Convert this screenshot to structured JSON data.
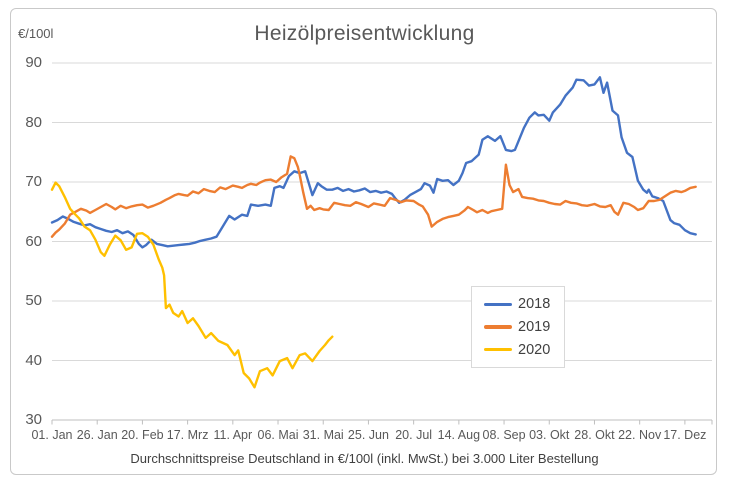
{
  "chart": {
    "title": "Heizölpreisentwicklung",
    "unit_label": "€/100l",
    "caption": "Durchschnittspreise Deutschland in €/100l (inkl. MwSt.) bei 3.000 Liter Bestellung"
  },
  "chart_data": {
    "type": "line",
    "title": "Heizölpreisentwicklung",
    "ylabel": "€/100l",
    "ylim": [
      30,
      90
    ],
    "yticks": [
      90,
      80,
      70,
      60,
      50,
      40,
      30
    ],
    "xlim_days": [
      0,
      365
    ],
    "xtick_days": [
      0,
      25,
      50,
      75,
      100,
      125,
      150,
      175,
      200,
      225,
      250,
      275,
      300,
      325,
      350
    ],
    "xtick_labels": [
      "01. Jan",
      "26. Jan",
      "20. Feb",
      "17. Mrz",
      "11. Apr",
      "06. Mai",
      "31. Mai",
      "25. Jun",
      "20. Jul",
      "14. Aug",
      "08. Sep",
      "03. Okt",
      "28. Okt",
      "22. Nov",
      "17. Dez"
    ],
    "grid": "horizontal",
    "legend_position": "inside-right",
    "axis_color": "#bfbfbf",
    "grid_color": "#d9d9d9",
    "series": [
      {
        "name": "2018",
        "color": "#4472C4",
        "points": [
          [
            0,
            63.2
          ],
          [
            3,
            63.6
          ],
          [
            6,
            64.2
          ],
          [
            9,
            63.8
          ],
          [
            12,
            63.3
          ],
          [
            15,
            63.0
          ],
          [
            18,
            62.7
          ],
          [
            21,
            62.9
          ],
          [
            24,
            62.4
          ],
          [
            27,
            62.1
          ],
          [
            30,
            61.8
          ],
          [
            33,
            61.6
          ],
          [
            36,
            61.9
          ],
          [
            39,
            61.4
          ],
          [
            42,
            61.7
          ],
          [
            45,
            61.1
          ],
          [
            48,
            59.6
          ],
          [
            50,
            59.0
          ],
          [
            52,
            59.4
          ],
          [
            55,
            60.3
          ],
          [
            58,
            59.6
          ],
          [
            61,
            59.4
          ],
          [
            64,
            59.2
          ],
          [
            67,
            59.3
          ],
          [
            70,
            59.4
          ],
          [
            73,
            59.5
          ],
          [
            76,
            59.6
          ],
          [
            79,
            59.8
          ],
          [
            82,
            60.1
          ],
          [
            85,
            60.3
          ],
          [
            88,
            60.5
          ],
          [
            91,
            60.8
          ],
          [
            94,
            62.3
          ],
          [
            98,
            64.3
          ],
          [
            101,
            63.7
          ],
          [
            105,
            64.5
          ],
          [
            108,
            64.3
          ],
          [
            110,
            66.2
          ],
          [
            114,
            66.0
          ],
          [
            118,
            66.2
          ],
          [
            121,
            66.0
          ],
          [
            123,
            69.0
          ],
          [
            126,
            69.3
          ],
          [
            128,
            69.0
          ],
          [
            131,
            71.0
          ],
          [
            134,
            71.8
          ],
          [
            137,
            71.5
          ],
          [
            140,
            71.8
          ],
          [
            144,
            67.8
          ],
          [
            147,
            69.8
          ],
          [
            149,
            69.3
          ],
          [
            152,
            68.7
          ],
          [
            155,
            68.7
          ],
          [
            158,
            69.0
          ],
          [
            161,
            68.5
          ],
          [
            164,
            68.8
          ],
          [
            167,
            68.4
          ],
          [
            170,
            68.6
          ],
          [
            173,
            68.9
          ],
          [
            176,
            68.3
          ],
          [
            179,
            68.5
          ],
          [
            182,
            68.2
          ],
          [
            185,
            68.4
          ],
          [
            188,
            68.0
          ],
          [
            190,
            67.2
          ],
          [
            192,
            66.5
          ],
          [
            195,
            67.0
          ],
          [
            198,
            67.8
          ],
          [
            201,
            68.3
          ],
          [
            204,
            68.8
          ],
          [
            206,
            69.8
          ],
          [
            209,
            69.4
          ],
          [
            211,
            68.2
          ],
          [
            213,
            70.5
          ],
          [
            216,
            70.2
          ],
          [
            219,
            70.3
          ],
          [
            222,
            69.5
          ],
          [
            225,
            70.2
          ],
          [
            227,
            71.5
          ],
          [
            229,
            73.2
          ],
          [
            232,
            73.5
          ],
          [
            236,
            74.6
          ],
          [
            238,
            77.1
          ],
          [
            241,
            77.7
          ],
          [
            245,
            76.9
          ],
          [
            248,
            77.7
          ],
          [
            251,
            75.4
          ],
          [
            254,
            75.2
          ],
          [
            256,
            75.4
          ],
          [
            261,
            79.1
          ],
          [
            264,
            80.8
          ],
          [
            267,
            81.7
          ],
          [
            269,
            81.2
          ],
          [
            272,
            81.3
          ],
          [
            275,
            80.3
          ],
          [
            277,
            81.7
          ],
          [
            281,
            83.0
          ],
          [
            284,
            84.5
          ],
          [
            288,
            85.9
          ],
          [
            290,
            87.2
          ],
          [
            294,
            87.1
          ],
          [
            297,
            86.2
          ],
          [
            300,
            86.4
          ],
          [
            303,
            87.6
          ],
          [
            305,
            85.0
          ],
          [
            307,
            86.7
          ],
          [
            310,
            82.0
          ],
          [
            313,
            81.2
          ],
          [
            315,
            77.5
          ],
          [
            318,
            74.9
          ],
          [
            321,
            74.2
          ],
          [
            324,
            70.2
          ],
          [
            327,
            68.7
          ],
          [
            329,
            68.2
          ],
          [
            330,
            68.7
          ],
          [
            332,
            67.6
          ],
          [
            335,
            67.3
          ],
          [
            338,
            66.8
          ],
          [
            342,
            63.6
          ],
          [
            344,
            63.1
          ],
          [
            347,
            62.8
          ],
          [
            350,
            61.9
          ],
          [
            353,
            61.4
          ],
          [
            356,
            61.2
          ]
        ]
      },
      {
        "name": "2019",
        "color": "#ED7D31",
        "points": [
          [
            0,
            60.8
          ],
          [
            2,
            61.5
          ],
          [
            4,
            62.0
          ],
          [
            7,
            63.0
          ],
          [
            10,
            64.5
          ],
          [
            13,
            65.0
          ],
          [
            16,
            65.5
          ],
          [
            19,
            65.2
          ],
          [
            21,
            64.8
          ],
          [
            24,
            65.3
          ],
          [
            27,
            65.8
          ],
          [
            30,
            66.3
          ],
          [
            33,
            65.8
          ],
          [
            35,
            65.4
          ],
          [
            38,
            66.0
          ],
          [
            41,
            65.6
          ],
          [
            44,
            65.9
          ],
          [
            47,
            66.1
          ],
          [
            50,
            66.2
          ],
          [
            53,
            65.7
          ],
          [
            56,
            66.0
          ],
          [
            60,
            66.5
          ],
          [
            63,
            67.0
          ],
          [
            65,
            67.3
          ],
          [
            68,
            67.8
          ],
          [
            70,
            68.0
          ],
          [
            73,
            67.8
          ],
          [
            75,
            67.7
          ],
          [
            78,
            68.4
          ],
          [
            81,
            68.1
          ],
          [
            84,
            68.8
          ],
          [
            87,
            68.5
          ],
          [
            90,
            68.3
          ],
          [
            93,
            69.1
          ],
          [
            96,
            68.8
          ],
          [
            100,
            69.4
          ],
          [
            103,
            69.2
          ],
          [
            105,
            69.0
          ],
          [
            108,
            69.5
          ],
          [
            110,
            69.7
          ],
          [
            113,
            69.5
          ],
          [
            115,
            69.9
          ],
          [
            118,
            70.3
          ],
          [
            121,
            70.4
          ],
          [
            124,
            70.0
          ],
          [
            127,
            70.8
          ],
          [
            130,
            71.4
          ],
          [
            132,
            74.3
          ],
          [
            134,
            74.0
          ],
          [
            136,
            72.5
          ],
          [
            137,
            71.2
          ],
          [
            139,
            68.2
          ],
          [
            141,
            65.5
          ],
          [
            143,
            66.0
          ],
          [
            145,
            65.3
          ],
          [
            148,
            65.6
          ],
          [
            150,
            65.4
          ],
          [
            153,
            65.3
          ],
          [
            156,
            66.5
          ],
          [
            159,
            66.3
          ],
          [
            162,
            66.1
          ],
          [
            165,
            66.0
          ],
          [
            168,
            66.6
          ],
          [
            171,
            66.3
          ],
          [
            175,
            65.8
          ],
          [
            178,
            66.4
          ],
          [
            181,
            66.2
          ],
          [
            184,
            66.0
          ],
          [
            187,
            67.3
          ],
          [
            190,
            67.0
          ],
          [
            193,
            66.6
          ],
          [
            196,
            66.9
          ],
          [
            200,
            66.8
          ],
          [
            203,
            66.2
          ],
          [
            205,
            65.9
          ],
          [
            208,
            64.5
          ],
          [
            210,
            62.5
          ],
          [
            213,
            63.3
          ],
          [
            216,
            63.8
          ],
          [
            219,
            64.1
          ],
          [
            222,
            64.3
          ],
          [
            225,
            64.5
          ],
          [
            228,
            65.2
          ],
          [
            230,
            65.8
          ],
          [
            233,
            65.3
          ],
          [
            235,
            64.9
          ],
          [
            238,
            65.3
          ],
          [
            241,
            64.8
          ],
          [
            243,
            65.1
          ],
          [
            246,
            65.3
          ],
          [
            249,
            65.5
          ],
          [
            251,
            72.9
          ],
          [
            253,
            69.5
          ],
          [
            255,
            68.3
          ],
          [
            258,
            68.8
          ],
          [
            260,
            67.5
          ],
          [
            263,
            67.3
          ],
          [
            266,
            67.2
          ],
          [
            269,
            66.9
          ],
          [
            272,
            66.8
          ],
          [
            275,
            66.5
          ],
          [
            278,
            66.3
          ],
          [
            281,
            66.2
          ],
          [
            284,
            66.8
          ],
          [
            287,
            66.5
          ],
          [
            290,
            66.4
          ],
          [
            293,
            66.1
          ],
          [
            296,
            66.0
          ],
          [
            300,
            66.3
          ],
          [
            303,
            65.9
          ],
          [
            306,
            65.8
          ],
          [
            309,
            66.1
          ],
          [
            311,
            65.0
          ],
          [
            313,
            64.5
          ],
          [
            316,
            66.5
          ],
          [
            319,
            66.3
          ],
          [
            322,
            65.8
          ],
          [
            324,
            65.3
          ],
          [
            327,
            65.6
          ],
          [
            330,
            66.8
          ],
          [
            333,
            66.8
          ],
          [
            336,
            67.0
          ],
          [
            339,
            67.6
          ],
          [
            342,
            68.2
          ],
          [
            345,
            68.5
          ],
          [
            348,
            68.3
          ],
          [
            350,
            68.5
          ],
          [
            353,
            69.0
          ],
          [
            356,
            69.2
          ]
        ]
      },
      {
        "name": "2020",
        "color": "#FFC000",
        "points": [
          [
            0,
            68.7
          ],
          [
            2,
            69.9
          ],
          [
            4,
            69.3
          ],
          [
            7,
            67.5
          ],
          [
            10,
            65.5
          ],
          [
            13,
            64.5
          ],
          [
            15,
            63.9
          ],
          [
            18,
            62.5
          ],
          [
            21,
            61.9
          ],
          [
            24,
            60.3
          ],
          [
            27,
            58.2
          ],
          [
            29,
            57.6
          ],
          [
            32,
            59.5
          ],
          [
            35,
            61.0
          ],
          [
            38,
            60.2
          ],
          [
            41,
            58.6
          ],
          [
            44,
            59.0
          ],
          [
            47,
            61.3
          ],
          [
            50,
            61.4
          ],
          [
            53,
            60.8
          ],
          [
            56,
            59.5
          ],
          [
            59,
            57.0
          ],
          [
            61,
            55.6
          ],
          [
            62,
            54.3
          ],
          [
            63,
            48.8
          ],
          [
            65,
            49.4
          ],
          [
            67,
            48.0
          ],
          [
            70,
            47.4
          ],
          [
            72,
            48.3
          ],
          [
            75,
            46.3
          ],
          [
            78,
            47.1
          ],
          [
            81,
            45.8
          ],
          [
            85,
            43.8
          ],
          [
            88,
            44.6
          ],
          [
            92,
            43.3
          ],
          [
            97,
            42.6
          ],
          [
            101,
            40.9
          ],
          [
            103,
            41.7
          ],
          [
            106,
            37.9
          ],
          [
            109,
            37.0
          ],
          [
            112,
            35.5
          ],
          [
            115,
            38.2
          ],
          [
            119,
            38.7
          ],
          [
            122,
            37.5
          ],
          [
            126,
            39.9
          ],
          [
            130,
            40.4
          ],
          [
            133,
            38.7
          ],
          [
            137,
            40.9
          ],
          [
            140,
            41.2
          ],
          [
            144,
            39.9
          ],
          [
            148,
            41.6
          ],
          [
            151,
            42.6
          ],
          [
            153,
            43.4
          ],
          [
            155,
            44.0
          ]
        ]
      }
    ]
  }
}
